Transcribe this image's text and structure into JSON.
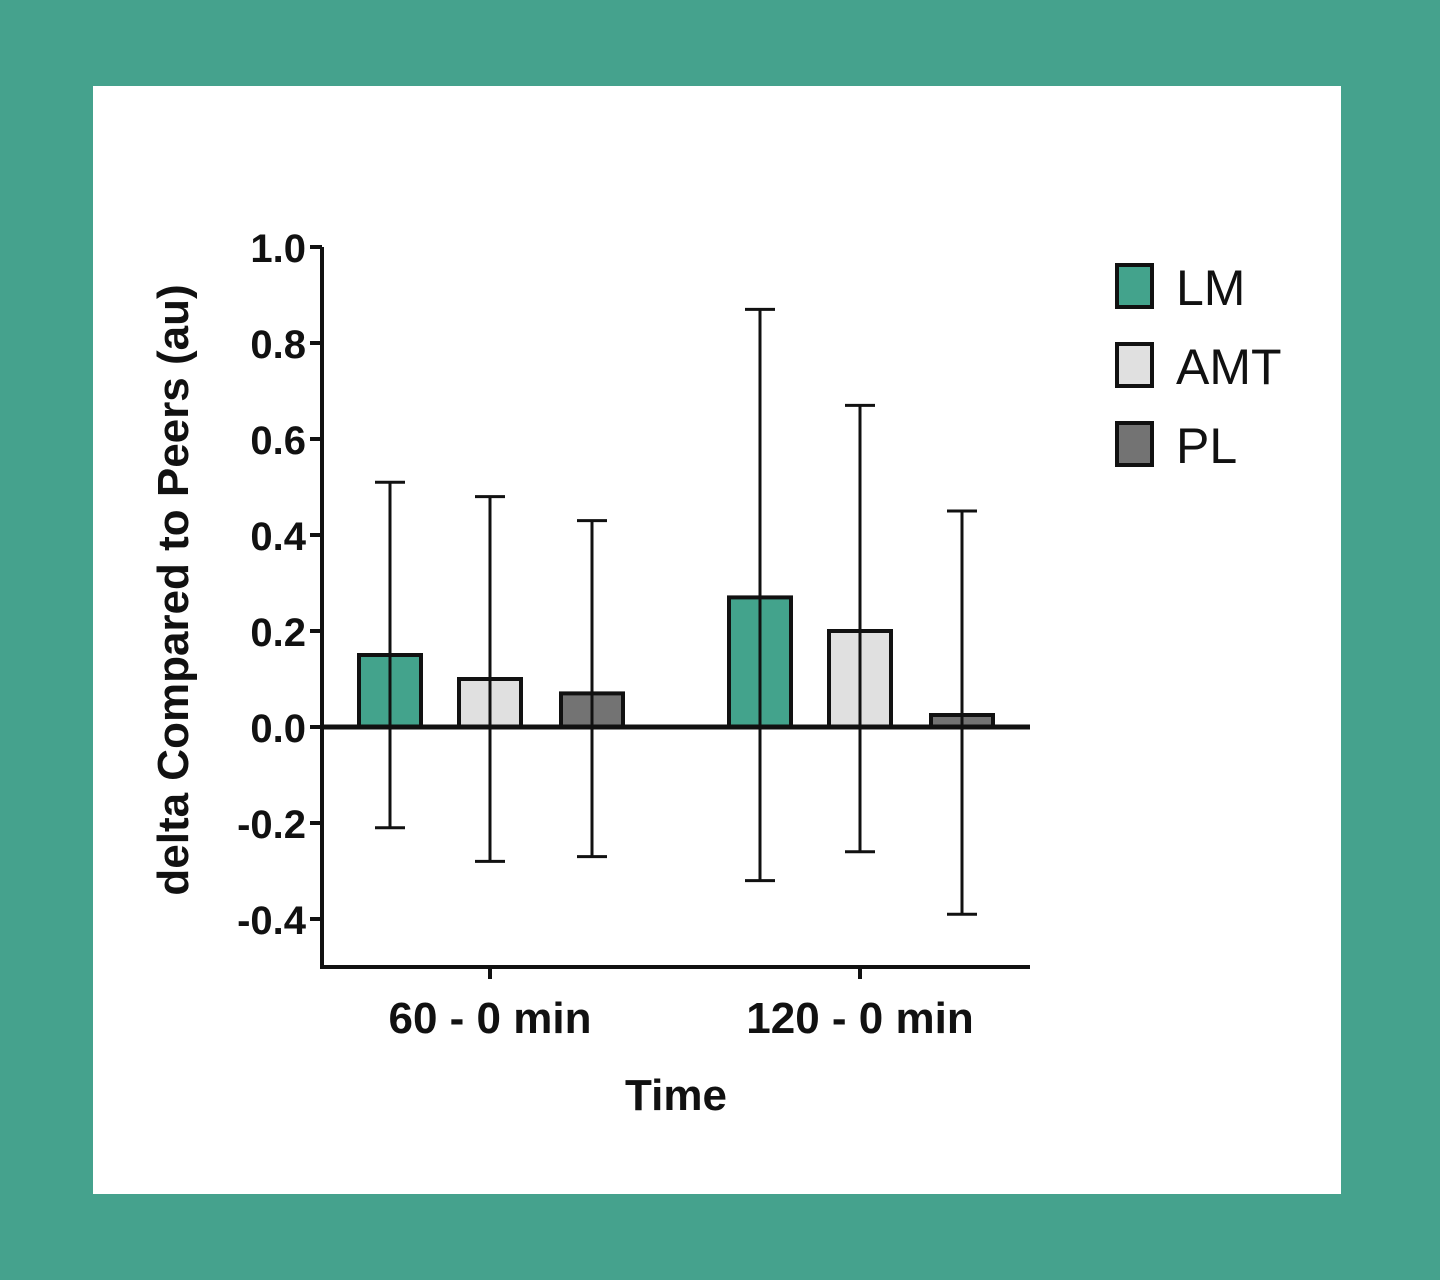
{
  "chart_data": {
    "type": "bar",
    "title": "",
    "xlabel": "Time",
    "ylabel": "delta Compared to Peers (au)",
    "ylim": [
      -0.5,
      1.0
    ],
    "yticks": [
      "1.0",
      "0.8",
      "0.6",
      "0.4",
      "0.2",
      "0.0",
      "-0.2",
      "-0.4"
    ],
    "ytick_values": [
      1.0,
      0.8,
      0.6,
      0.4,
      0.2,
      0.0,
      -0.2,
      -0.4
    ],
    "categories": [
      "60 - 0 min",
      "120 - 0 min"
    ],
    "legend_position": "top-right",
    "series": [
      {
        "name": "LM",
        "color": "#43a38c",
        "values": [
          0.15,
          0.27
        ],
        "err_high": [
          0.51,
          0.87
        ],
        "err_low": [
          -0.21,
          -0.32
        ]
      },
      {
        "name": "AMT",
        "color": "#e0e0e0",
        "values": [
          0.1,
          0.2
        ],
        "err_high": [
          0.48,
          0.67
        ],
        "err_low": [
          -0.28,
          -0.26
        ]
      },
      {
        "name": "PL",
        "color": "#737373",
        "values": [
          0.07,
          0.025
        ],
        "err_high": [
          0.43,
          0.45
        ],
        "err_low": [
          -0.27,
          -0.39
        ]
      }
    ]
  },
  "colors": {
    "background": "#45a28d",
    "panel": "#ffffff"
  }
}
